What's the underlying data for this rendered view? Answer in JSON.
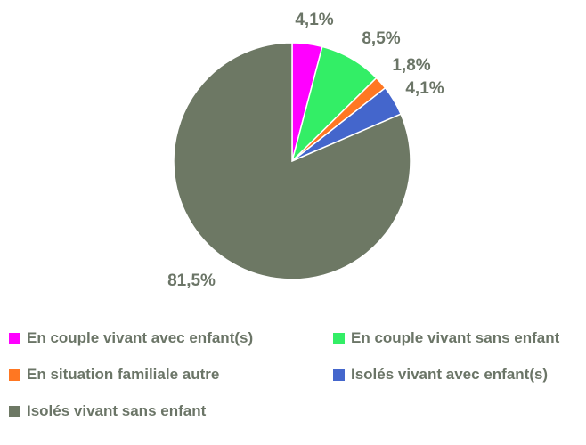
{
  "chart_data": {
    "type": "pie",
    "title": "",
    "legend_position": "bottom",
    "slices": [
      {
        "label": "En couple vivant avec enfant(s)",
        "value": 4.1,
        "display": "4,1%",
        "color": "#ff00ff"
      },
      {
        "label": "En couple vivant sans enfant",
        "value": 8.5,
        "display": "8,5%",
        "color": "#33ee66"
      },
      {
        "label": "En situation familiale autre",
        "value": 1.8,
        "display": "1,8%",
        "color": "#ff7722"
      },
      {
        "label": "Isolés vivant avec enfant(s)",
        "value": 4.1,
        "display": "4,1%",
        "color": "#4466cc"
      },
      {
        "label": "Isolés vivant sans enfant",
        "value": 81.5,
        "display": "81,5%",
        "color": "#6d7864"
      }
    ]
  }
}
